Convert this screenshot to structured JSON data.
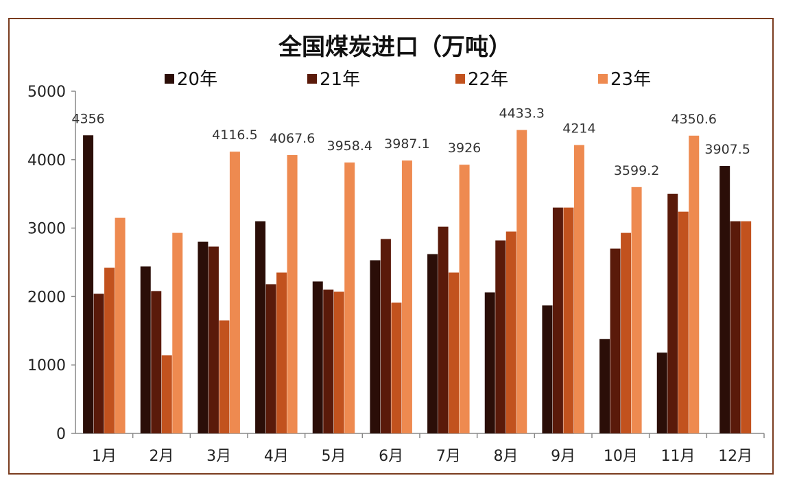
{
  "chart_data": {
    "type": "bar",
    "title": "全国煤炭进口（万吨）",
    "categories": [
      "1月",
      "2月",
      "3月",
      "4月",
      "5月",
      "6月",
      "7月",
      "8月",
      "9月",
      "10月",
      "11月",
      "12月"
    ],
    "series": [
      {
        "name": "20年",
        "color": "#2b0e08",
        "values": [
          4356,
          2440,
          2800,
          3100,
          2220,
          2530,
          2620,
          2060,
          1870,
          1380,
          1180,
          3907.5
        ]
      },
      {
        "name": "21年",
        "color": "#5a1a0a",
        "values": [
          2040,
          2080,
          2730,
          2180,
          2100,
          2840,
          3020,
          2820,
          3300,
          2700,
          3500,
          3100
        ]
      },
      {
        "name": "22年",
        "color": "#c2521e",
        "values": [
          2420,
          1140,
          1650,
          2350,
          2070,
          1910,
          2350,
          2950,
          3300,
          2930,
          3240,
          3100
        ]
      },
      {
        "name": "23年",
        "color": "#ee8a50",
        "values": [
          3150,
          2930,
          4116.5,
          4067.6,
          3958.4,
          3987.1,
          3926,
          4433.3,
          4214,
          3599.2,
          4350.6,
          null
        ]
      }
    ],
    "data_labels": [
      {
        "category_index": 0,
        "series_index": 0,
        "text": "4356"
      },
      {
        "category_index": 2,
        "series_index": 3,
        "text": "4116.5"
      },
      {
        "category_index": 3,
        "series_index": 3,
        "text": "4067.6"
      },
      {
        "category_index": 4,
        "series_index": 3,
        "text": "3958.4"
      },
      {
        "category_index": 5,
        "series_index": 3,
        "text": "3987.1"
      },
      {
        "category_index": 6,
        "series_index": 3,
        "text": "3926"
      },
      {
        "category_index": 7,
        "series_index": 3,
        "text": "4433.3"
      },
      {
        "category_index": 8,
        "series_index": 3,
        "text": "4214"
      },
      {
        "category_index": 9,
        "series_index": 3,
        "text": "3599.2"
      },
      {
        "category_index": 10,
        "series_index": 3,
        "text": "4350.6"
      },
      {
        "category_index": 11,
        "series_index": 0,
        "text": "3907.5"
      }
    ],
    "y_ticks": [
      "0",
      "1000",
      "2000",
      "3000",
      "4000",
      "5000"
    ],
    "ylim": [
      0,
      5000
    ],
    "grid": false,
    "legend_position": "top"
  }
}
